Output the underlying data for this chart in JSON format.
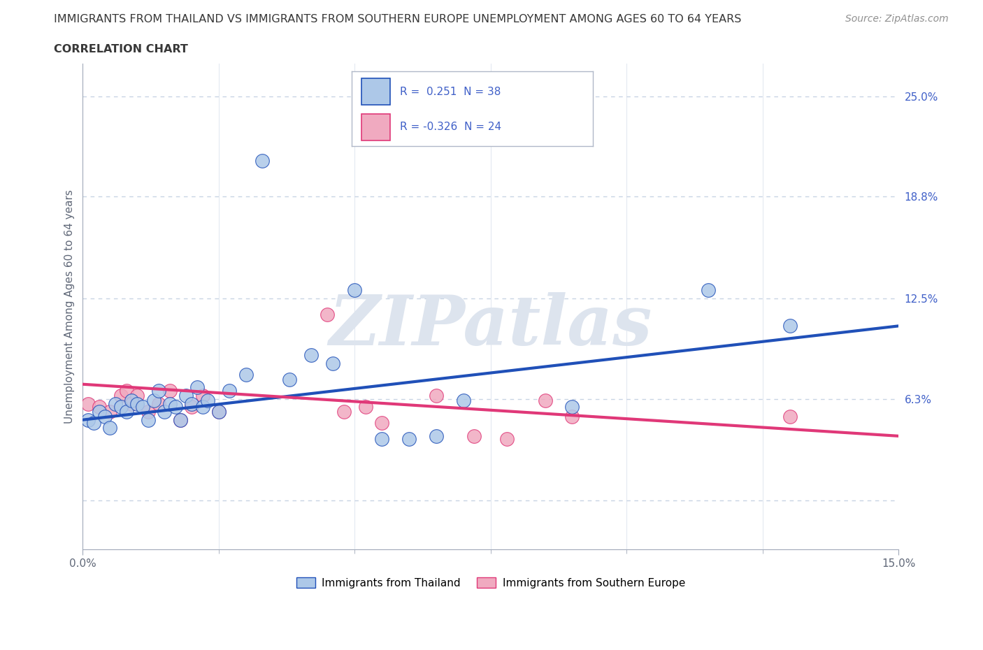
{
  "title_line1": "IMMIGRANTS FROM THAILAND VS IMMIGRANTS FROM SOUTHERN EUROPE UNEMPLOYMENT AMONG AGES 60 TO 64 YEARS",
  "title_line2": "CORRELATION CHART",
  "source": "Source: ZipAtlas.com",
  "ylabel": "Unemployment Among Ages 60 to 64 years",
  "xlim": [
    0.0,
    0.15
  ],
  "ylim": [
    -0.03,
    0.27
  ],
  "R_thailand": 0.251,
  "N_thailand": 38,
  "R_southern": -0.326,
  "N_southern": 24,
  "color_thailand": "#adc8e8",
  "color_southern": "#f0aac0",
  "line_color_thailand": "#2050b8",
  "line_color_southern": "#e03878",
  "watermark": "ZIPatlas",
  "background_color": "#ffffff",
  "grid_color": "#c8d4e4",
  "title_color": "#383838",
  "axis_color": "#a0a8b8",
  "ytick_color": "#4060c8",
  "thailand_x": [
    0.001,
    0.002,
    0.003,
    0.004,
    0.005,
    0.006,
    0.007,
    0.008,
    0.009,
    0.01,
    0.011,
    0.012,
    0.013,
    0.014,
    0.015,
    0.016,
    0.017,
    0.018,
    0.019,
    0.02,
    0.021,
    0.022,
    0.023,
    0.025,
    0.027,
    0.03,
    0.033,
    0.038,
    0.042,
    0.046,
    0.05,
    0.055,
    0.06,
    0.065,
    0.07,
    0.09,
    0.115,
    0.13
  ],
  "thailand_y": [
    0.05,
    0.048,
    0.055,
    0.052,
    0.045,
    0.06,
    0.058,
    0.055,
    0.062,
    0.06,
    0.058,
    0.05,
    0.062,
    0.068,
    0.055,
    0.06,
    0.058,
    0.05,
    0.065,
    0.06,
    0.07,
    0.058,
    0.062,
    0.055,
    0.068,
    0.078,
    0.21,
    0.075,
    0.09,
    0.085,
    0.13,
    0.038,
    0.038,
    0.04,
    0.062,
    0.058,
    0.13,
    0.108
  ],
  "southern_x": [
    0.001,
    0.003,
    0.005,
    0.007,
    0.008,
    0.009,
    0.01,
    0.012,
    0.014,
    0.016,
    0.018,
    0.02,
    0.022,
    0.025,
    0.045,
    0.048,
    0.052,
    0.055,
    0.065,
    0.072,
    0.078,
    0.085,
    0.09,
    0.13
  ],
  "southern_y": [
    0.06,
    0.058,
    0.055,
    0.065,
    0.068,
    0.06,
    0.065,
    0.055,
    0.06,
    0.068,
    0.05,
    0.058,
    0.065,
    0.055,
    0.115,
    0.055,
    0.058,
    0.048,
    0.065,
    0.04,
    0.038,
    0.062,
    0.052,
    0.052
  ],
  "blue_line_x0": 0.0,
  "blue_line_y0": 0.05,
  "blue_line_x1": 0.15,
  "blue_line_y1": 0.108,
  "pink_line_x0": 0.0,
  "pink_line_y0": 0.072,
  "pink_line_x1": 0.15,
  "pink_line_y1": 0.04
}
